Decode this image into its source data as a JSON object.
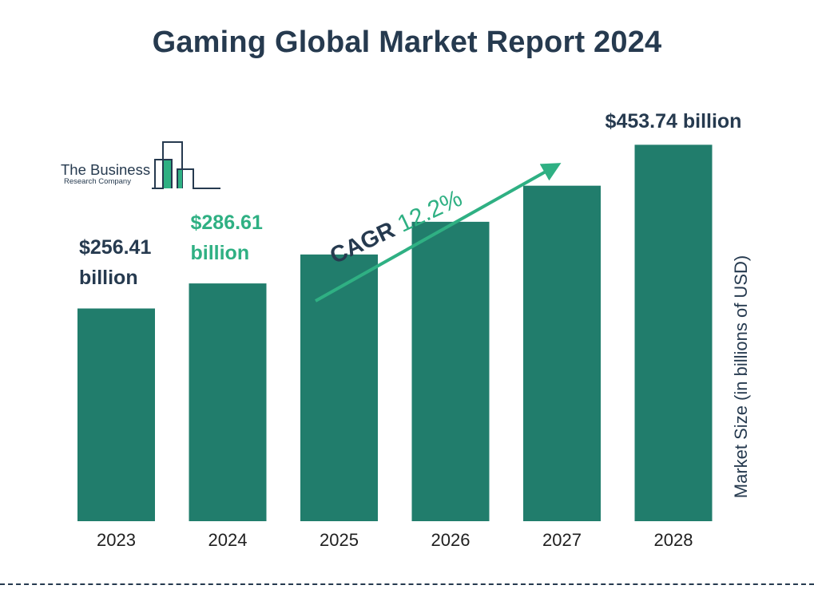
{
  "title": "Gaming Global Market Report 2024",
  "logo": {
    "line1": "The Business",
    "line2": "Research Company"
  },
  "cagr": {
    "label": "CAGR",
    "value": "12.2%"
  },
  "colors": {
    "bar": "#217d6c",
    "text": "#263a4f",
    "accent": "#2fb083"
  },
  "chart_data": {
    "type": "bar",
    "title": "Gaming Global Market Report 2024",
    "categories": [
      "2023",
      "2024",
      "2025",
      "2026",
      "2027",
      "2028"
    ],
    "values": [
      256.41,
      286.61,
      321.5,
      360.9,
      404.4,
      453.74
    ],
    "ylabel": "Market Size (in billions of USD)",
    "data_labels": {
      "2023": [
        "$256.41",
        "billion"
      ],
      "2024": [
        "$286.61",
        "billion"
      ],
      "2028": [
        "$453.74 billion"
      ]
    },
    "grid": false,
    "legend": "none"
  }
}
